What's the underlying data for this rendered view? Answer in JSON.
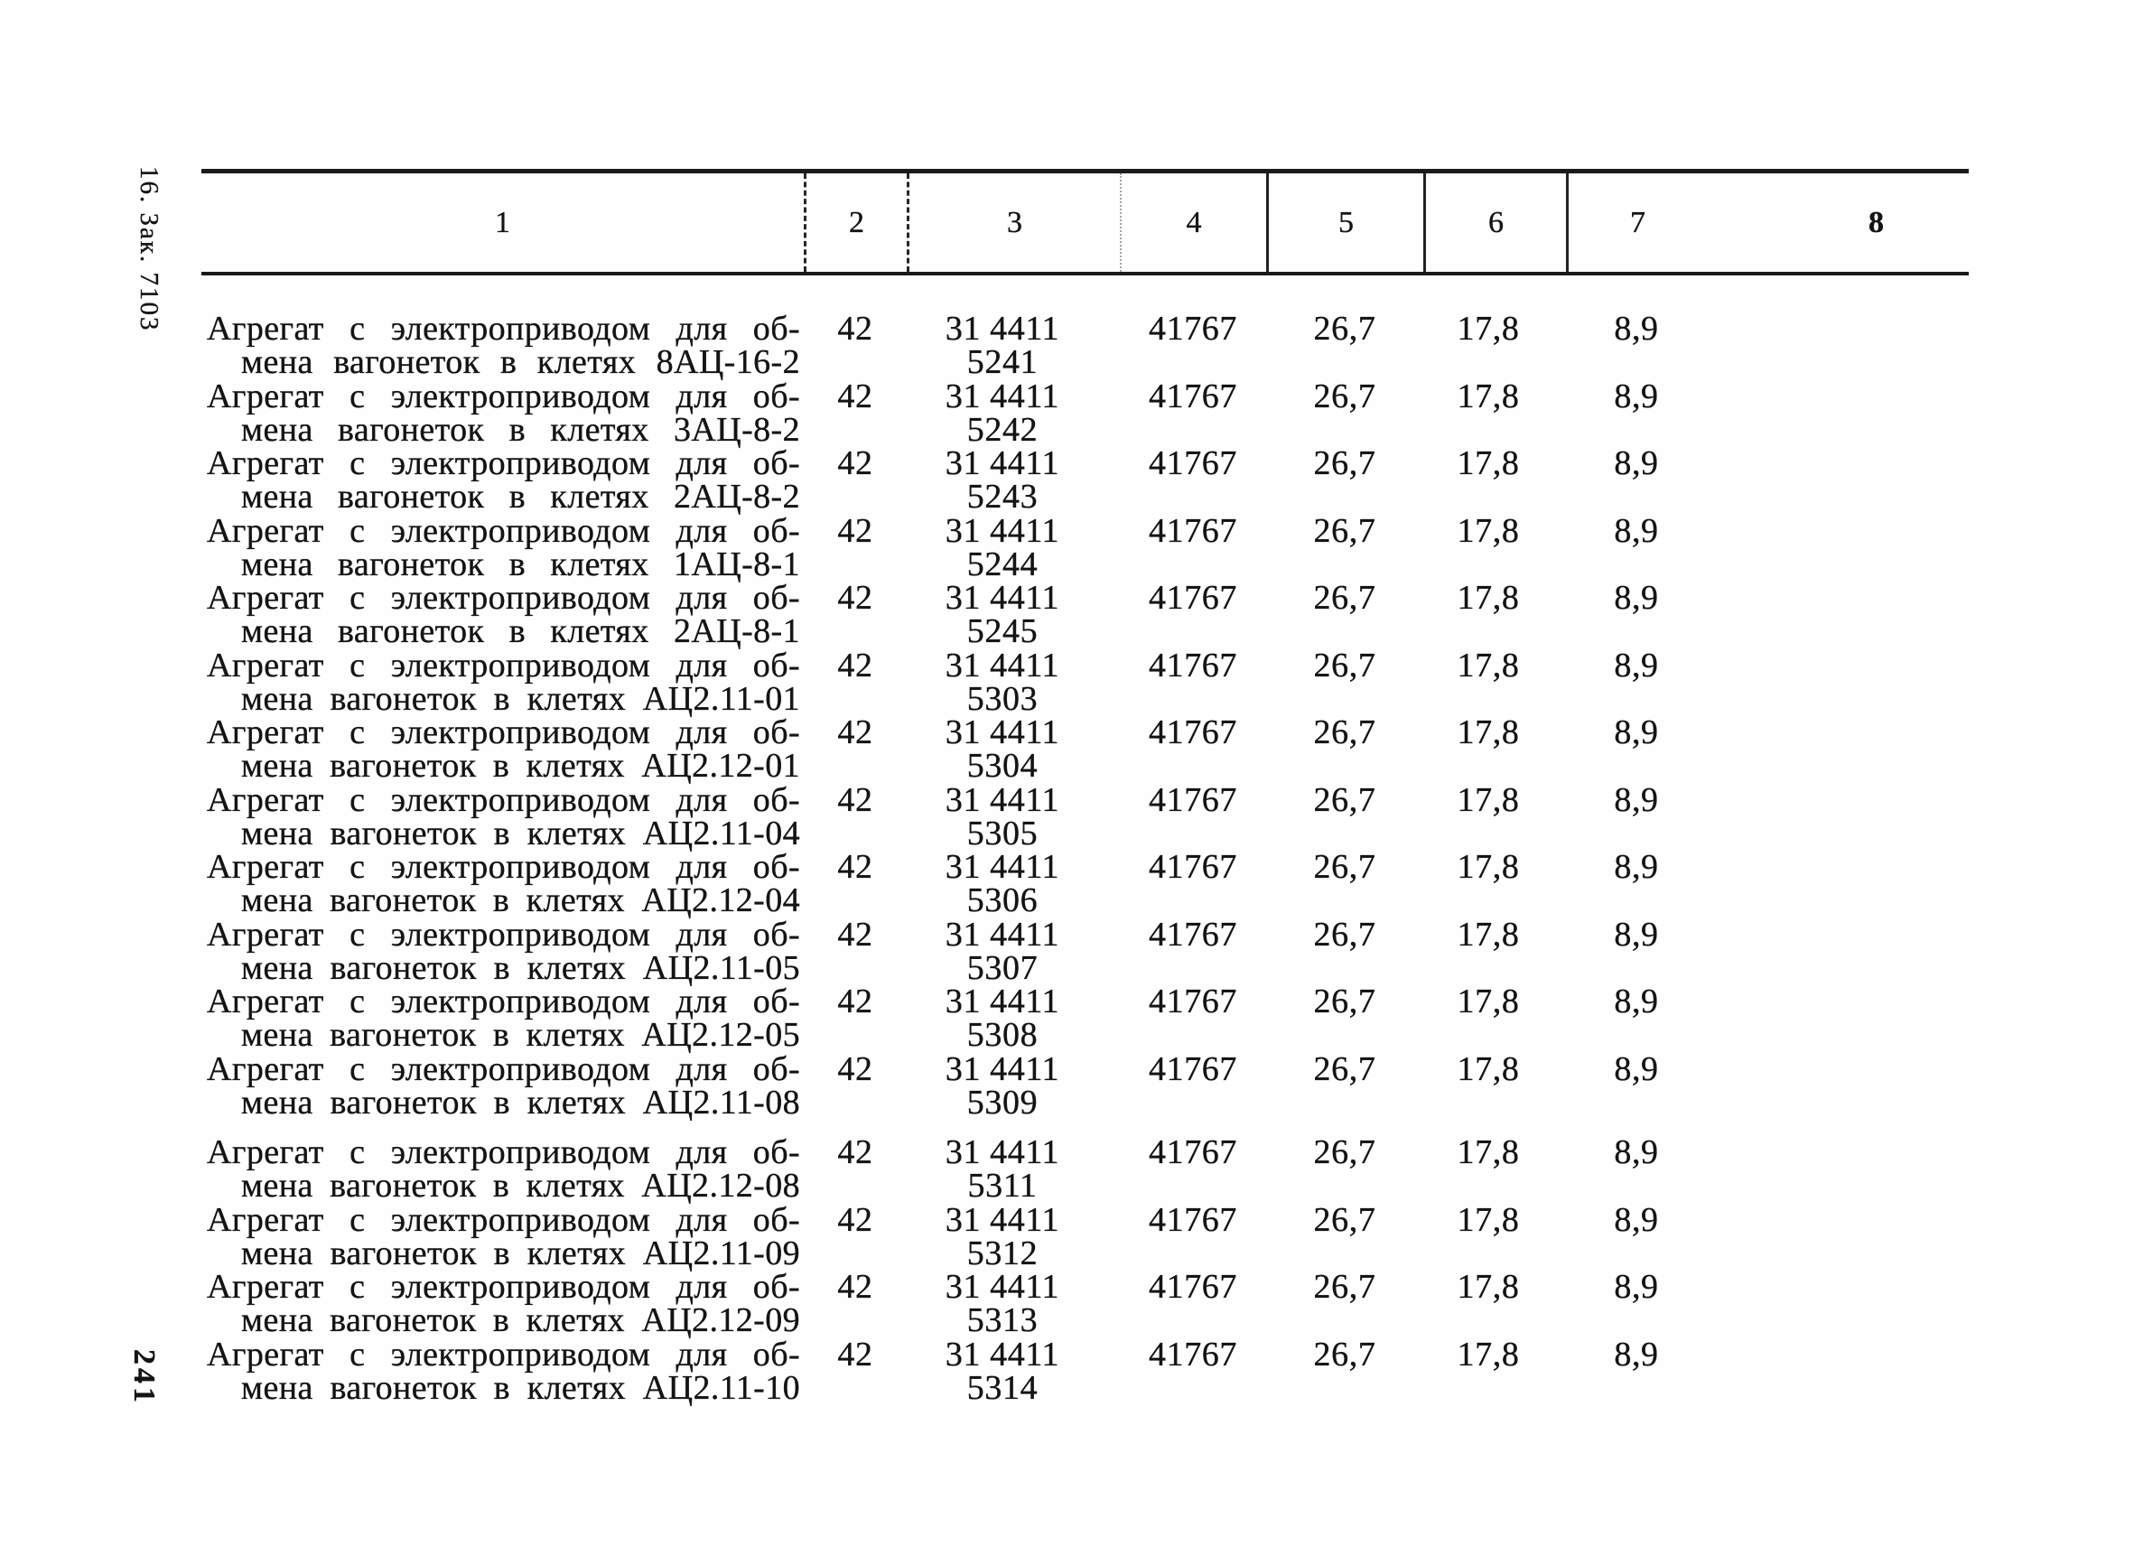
{
  "page": {
    "margin_note_top": "16. Зак. 7103",
    "page_number": "241"
  },
  "table": {
    "header": [
      "1",
      "2",
      "3",
      "4",
      "5",
      "6",
      "7",
      "8"
    ],
    "rows": [
      {
        "line1": "Агрегат с электроприводом для об-",
        "line2": "мена вагонеток в клетях 8АЦ-16-2",
        "c2": "42",
        "c3": "31 4411 5241",
        "c4": "41767",
        "c5": "26,7",
        "c6": "17,8",
        "c7": "8,9",
        "c8": ""
      },
      {
        "line1": "Агрегат с электроприводом для об-",
        "line2": "мена вагонеток в клетях 3АЦ-8-2",
        "c2": "42",
        "c3": "31 4411 5242",
        "c4": "41767",
        "c5": "26,7",
        "c6": "17,8",
        "c7": "8,9",
        "c8": ""
      },
      {
        "line1": "Агрегат с электроприводом для об-",
        "line2": "мена вагонеток в клетях 2АЦ-8-2",
        "c2": "42",
        "c3": "31 4411 5243",
        "c4": "41767",
        "c5": "26,7",
        "c6": "17,8",
        "c7": "8,9",
        "c8": ""
      },
      {
        "line1": "Агрегат с электроприводом для об-",
        "line2": "мена вагонеток в клетях 1АЦ-8-1",
        "c2": "42",
        "c3": "31 4411 5244",
        "c4": "41767",
        "c5": "26,7",
        "c6": "17,8",
        "c7": "8,9",
        "c8": ""
      },
      {
        "line1": "Агрегат с электроприводом для об-",
        "line2": "мена вагонеток в клетях 2АЦ-8-1",
        "c2": "42",
        "c3": "31 4411 5245",
        "c4": "41767",
        "c5": "26,7",
        "c6": "17,8",
        "c7": "8,9",
        "c8": ""
      },
      {
        "line1": "Агрегат с электроприводом для об-",
        "line2": "мена вагонеток в клетях АЦ2.11-01",
        "c2": "42",
        "c3": "31 4411 5303",
        "c4": "41767",
        "c5": "26,7",
        "c6": "17,8",
        "c7": "8,9",
        "c8": ""
      },
      {
        "line1": "Агрегат с электроприводом для об-",
        "line2": "мена вагонеток в клетях АЦ2.12-01",
        "c2": "42",
        "c3": "31 4411 5304",
        "c4": "41767",
        "c5": "26,7",
        "c6": "17,8",
        "c7": "8,9",
        "c8": ""
      },
      {
        "line1": "Агрегат с электроприводом для об-",
        "line2": "мена вагонеток в клетях АЦ2.11-04",
        "c2": "42",
        "c3": "31 4411 5305",
        "c4": "41767",
        "c5": "26,7",
        "c6": "17,8",
        "c7": "8,9",
        "c8": ""
      },
      {
        "line1": "Агрегат с электроприводом для об-",
        "line2": "мена вагонеток в клетях АЦ2.12-04",
        "c2": "42",
        "c3": "31 4411 5306",
        "c4": "41767",
        "c5": "26,7",
        "c6": "17,8",
        "c7": "8,9",
        "c8": ""
      },
      {
        "line1": "Агрегат с электроприводом для об-",
        "line2": "мена вагонеток в клетях АЦ2.11-05",
        "c2": "42",
        "c3": "31 4411 5307",
        "c4": "41767",
        "c5": "26,7",
        "c6": "17,8",
        "c7": "8,9",
        "c8": ""
      },
      {
        "line1": "Агрегат с электроприводом для об-",
        "line2": "мена вагонеток в клетях АЦ2.12-05",
        "c2": "42",
        "c3": "31 4411 5308",
        "c4": "41767",
        "c5": "26,7",
        "c6": "17,8",
        "c7": "8,9",
        "c8": ""
      },
      {
        "line1": "Агрегат с электроприводом для об-",
        "line2": "мена вагонеток в клетях АЦ2.11-08",
        "c2": "42",
        "c3": "31 4411 5309",
        "c4": "41767",
        "c5": "26,7",
        "c6": "17,8",
        "c7": "8,9",
        "c8": ""
      },
      {
        "line1": "Агрегат с электроприводом для об-",
        "line2": "мена вагонеток в клетях АЦ2.12-08",
        "c2": "42",
        "c3": "31 4411 5311",
        "c4": "41767",
        "c5": "26,7",
        "c6": "17,8",
        "c7": "8,9",
        "c8": ""
      },
      {
        "line1": "Агрегат с электроприводом для об-",
        "line2": "мена вагонеток в клетях АЦ2.11-09",
        "c2": "42",
        "c3": "31 4411 5312",
        "c4": "41767",
        "c5": "26,7",
        "c6": "17,8",
        "c7": "8,9",
        "c8": ""
      },
      {
        "line1": "Агрегат с электроприводом для об-",
        "line2": "мена вагонеток в клетях АЦ2.12-09",
        "c2": "42",
        "c3": "31 4411 5313",
        "c4": "41767",
        "c5": "26,7",
        "c6": "17,8",
        "c7": "8,9",
        "c8": ""
      },
      {
        "line1": "Агрегат с электроприводом для об-",
        "line2": "мена вагонеток в клетях АЦ2.11-10",
        "c2": "42",
        "c3": "31 4411 5314",
        "c4": "41767",
        "c5": "26,7",
        "c6": "17,8",
        "c7": "8,9",
        "c8": ""
      }
    ]
  }
}
